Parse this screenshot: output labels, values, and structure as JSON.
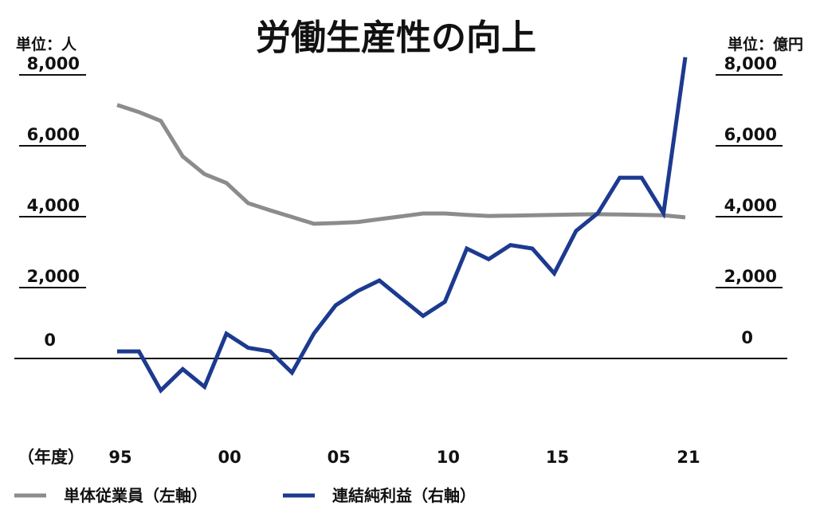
{
  "chart_data": {
    "type": "line",
    "title": "労働生産性の向上",
    "left_unit": "単位：人",
    "right_unit": "単位：億円",
    "x_axis_label": "（年度）",
    "x": [
      1995,
      1996,
      1997,
      1998,
      1999,
      2000,
      2001,
      2002,
      2003,
      2004,
      2005,
      2006,
      2007,
      2008,
      2009,
      2010,
      2011,
      2012,
      2013,
      2014,
      2015,
      2016,
      2017,
      2018,
      2019,
      2020,
      2021
    ],
    "x_ticks": [
      {
        "value": 1995,
        "label": "95"
      },
      {
        "value": 2000,
        "label": "00"
      },
      {
        "value": 2005,
        "label": "05"
      },
      {
        "value": 2010,
        "label": "10"
      },
      {
        "value": 2015,
        "label": "15"
      },
      {
        "value": 2021,
        "label": "21"
      }
    ],
    "y_left": {
      "range": [
        0,
        8000
      ],
      "ticks": [
        "0",
        "2,000",
        "4,000",
        "6,000",
        "8,000"
      ]
    },
    "y_right": {
      "range": [
        0,
        8000
      ],
      "ticks": [
        "0",
        "2,000",
        "4,000",
        "6,000",
        "8,000"
      ]
    },
    "series": [
      {
        "name": "単体従業員（左軸）",
        "axis": "left",
        "color": "#8c8c8c",
        "values": [
          7150,
          6950,
          6700,
          5700,
          5200,
          4950,
          4380,
          4180,
          3990,
          3800,
          3820,
          3850,
          3930,
          4010,
          4090,
          4090,
          4050,
          4020,
          4030,
          4040,
          4050,
          4060,
          4070,
          4060,
          4050,
          4040,
          3980
        ]
      },
      {
        "name": "連結純利益（右軸）",
        "axis": "right",
        "color": "#1c3a8f",
        "values": [
          200,
          200,
          -900,
          -300,
          -800,
          700,
          300,
          200,
          -400,
          700,
          1500,
          1900,
          2200,
          1700,
          1200,
          1600,
          3100,
          2800,
          3200,
          3100,
          2400,
          3600,
          4100,
          5100,
          5100,
          4100,
          8500
        ]
      }
    ],
    "legend_position": "bottom-left"
  }
}
